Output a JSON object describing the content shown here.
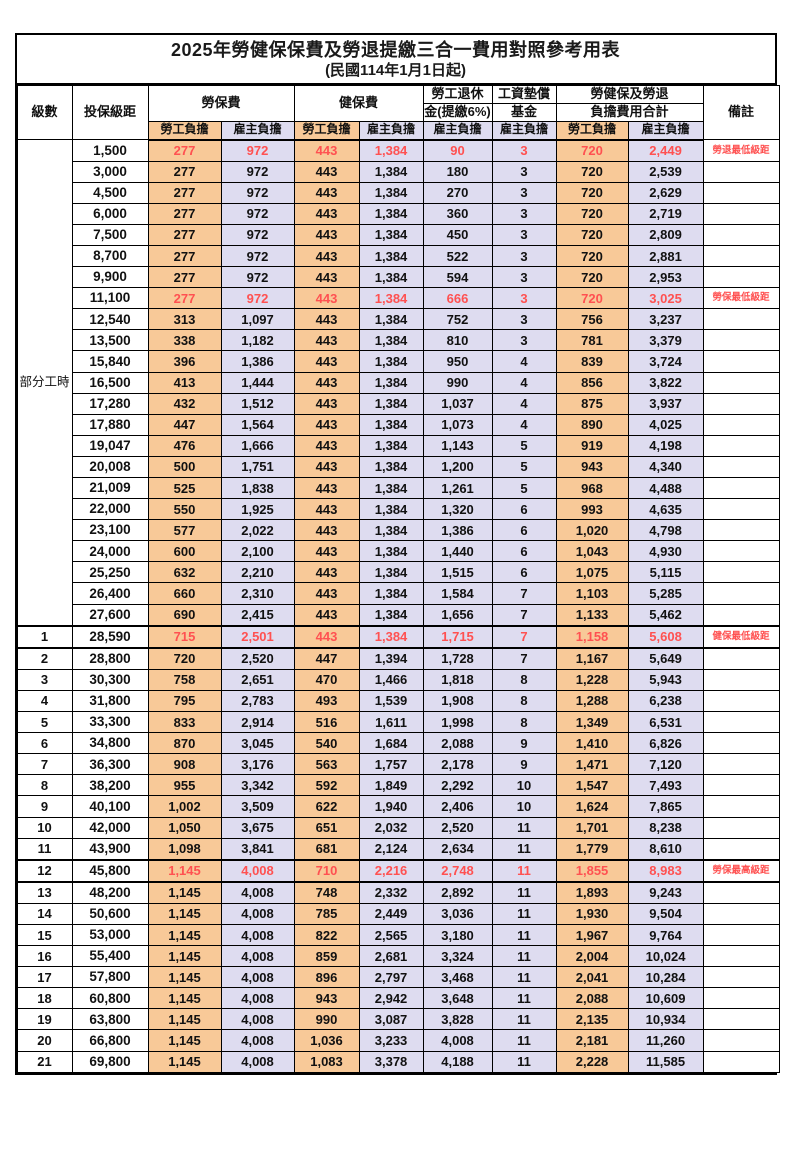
{
  "title": "2025年勞健保保費及勞退提繳三合一費用對照參考用表",
  "subtitle": "(民國114年1月1日起)",
  "colors": {
    "employee_cell_bg": "#F8C998",
    "employer_cell_bg": "#DEDCF0",
    "highlight_red": "#FF5151",
    "grid_line": "#000000"
  },
  "header": {
    "level": "級數",
    "salary_bracket": "投保級距",
    "labor_insurance": "勞保費",
    "health_insurance": "健保費",
    "pension_line1": "勞工退休",
    "pension_line2": "金(提繳6%)",
    "wage_fund_line1": "工資墊償",
    "wage_fund_line2": "基金",
    "total_line1": "勞健保及勞退",
    "total_line2": "負擔費用合計",
    "note": "備註",
    "employee_burden": "勞工負擔",
    "employer_burden": "雇主負擔"
  },
  "part_time_label": "部分工時",
  "part_time_rowspan": 23,
  "rows": [
    {
      "level": null,
      "salary": "1,500",
      "values": [
        "277",
        "972",
        "443",
        "1,384",
        "90",
        "3",
        "720",
        "2,449"
      ],
      "note": "勞退最低級距",
      "red": true,
      "thick": false
    },
    {
      "level": null,
      "salary": "3,000",
      "values": [
        "277",
        "972",
        "443",
        "1,384",
        "180",
        "3",
        "720",
        "2,539"
      ],
      "note": "",
      "red": false,
      "thick": false
    },
    {
      "level": null,
      "salary": "4,500",
      "values": [
        "277",
        "972",
        "443",
        "1,384",
        "270",
        "3",
        "720",
        "2,629"
      ],
      "note": "",
      "red": false,
      "thick": false
    },
    {
      "level": null,
      "salary": "6,000",
      "values": [
        "277",
        "972",
        "443",
        "1,384",
        "360",
        "3",
        "720",
        "2,719"
      ],
      "note": "",
      "red": false,
      "thick": false
    },
    {
      "level": null,
      "salary": "7,500",
      "values": [
        "277",
        "972",
        "443",
        "1,384",
        "450",
        "3",
        "720",
        "2,809"
      ],
      "note": "",
      "red": false,
      "thick": false
    },
    {
      "level": null,
      "salary": "8,700",
      "values": [
        "277",
        "972",
        "443",
        "1,384",
        "522",
        "3",
        "720",
        "2,881"
      ],
      "note": "",
      "red": false,
      "thick": false
    },
    {
      "level": null,
      "salary": "9,900",
      "values": [
        "277",
        "972",
        "443",
        "1,384",
        "594",
        "3",
        "720",
        "2,953"
      ],
      "note": "",
      "red": false,
      "thick": false
    },
    {
      "level": null,
      "salary": "11,100",
      "values": [
        "277",
        "972",
        "443",
        "1,384",
        "666",
        "3",
        "720",
        "3,025"
      ],
      "note": "勞保最低級距",
      "red": true,
      "thick": false
    },
    {
      "level": null,
      "salary": "12,540",
      "values": [
        "313",
        "1,097",
        "443",
        "1,384",
        "752",
        "3",
        "756",
        "3,237"
      ],
      "note": "",
      "red": false,
      "thick": false
    },
    {
      "level": null,
      "salary": "13,500",
      "values": [
        "338",
        "1,182",
        "443",
        "1,384",
        "810",
        "3",
        "781",
        "3,379"
      ],
      "note": "",
      "red": false,
      "thick": false
    },
    {
      "level": null,
      "salary": "15,840",
      "values": [
        "396",
        "1,386",
        "443",
        "1,384",
        "950",
        "4",
        "839",
        "3,724"
      ],
      "note": "",
      "red": false,
      "thick": false
    },
    {
      "level": null,
      "salary": "16,500",
      "values": [
        "413",
        "1,444",
        "443",
        "1,384",
        "990",
        "4",
        "856",
        "3,822"
      ],
      "note": "",
      "red": false,
      "thick": false
    },
    {
      "level": null,
      "salary": "17,280",
      "values": [
        "432",
        "1,512",
        "443",
        "1,384",
        "1,037",
        "4",
        "875",
        "3,937"
      ],
      "note": "",
      "red": false,
      "thick": false
    },
    {
      "level": null,
      "salary": "17,880",
      "values": [
        "447",
        "1,564",
        "443",
        "1,384",
        "1,073",
        "4",
        "890",
        "4,025"
      ],
      "note": "",
      "red": false,
      "thick": false
    },
    {
      "level": null,
      "salary": "19,047",
      "values": [
        "476",
        "1,666",
        "443",
        "1,384",
        "1,143",
        "5",
        "919",
        "4,198"
      ],
      "note": "",
      "red": false,
      "thick": false
    },
    {
      "level": null,
      "salary": "20,008",
      "values": [
        "500",
        "1,751",
        "443",
        "1,384",
        "1,200",
        "5",
        "943",
        "4,340"
      ],
      "note": "",
      "red": false,
      "thick": false
    },
    {
      "level": null,
      "salary": "21,009",
      "values": [
        "525",
        "1,838",
        "443",
        "1,384",
        "1,261",
        "5",
        "968",
        "4,488"
      ],
      "note": "",
      "red": false,
      "thick": false
    },
    {
      "level": null,
      "salary": "22,000",
      "values": [
        "550",
        "1,925",
        "443",
        "1,384",
        "1,320",
        "6",
        "993",
        "4,635"
      ],
      "note": "",
      "red": false,
      "thick": false
    },
    {
      "level": null,
      "salary": "23,100",
      "values": [
        "577",
        "2,022",
        "443",
        "1,384",
        "1,386",
        "6",
        "1,020",
        "4,798"
      ],
      "note": "",
      "red": false,
      "thick": false
    },
    {
      "level": null,
      "salary": "24,000",
      "values": [
        "600",
        "2,100",
        "443",
        "1,384",
        "1,440",
        "6",
        "1,043",
        "4,930"
      ],
      "note": "",
      "red": false,
      "thick": false
    },
    {
      "level": null,
      "salary": "25,250",
      "values": [
        "632",
        "2,210",
        "443",
        "1,384",
        "1,515",
        "6",
        "1,075",
        "5,115"
      ],
      "note": "",
      "red": false,
      "thick": false
    },
    {
      "level": null,
      "salary": "26,400",
      "values": [
        "660",
        "2,310",
        "443",
        "1,384",
        "1,584",
        "7",
        "1,103",
        "5,285"
      ],
      "note": "",
      "red": false,
      "thick": false
    },
    {
      "level": null,
      "salary": "27,600",
      "values": [
        "690",
        "2,415",
        "443",
        "1,384",
        "1,656",
        "7",
        "1,133",
        "5,462"
      ],
      "note": "",
      "red": false,
      "thick": false
    },
    {
      "level": "1",
      "salary": "28,590",
      "values": [
        "715",
        "2,501",
        "443",
        "1,384",
        "1,715",
        "7",
        "1,158",
        "5,608"
      ],
      "note": "健保最低級距",
      "red": true,
      "thick": true
    },
    {
      "level": "2",
      "salary": "28,800",
      "values": [
        "720",
        "2,520",
        "447",
        "1,394",
        "1,728",
        "7",
        "1,167",
        "5,649"
      ],
      "note": "",
      "red": false,
      "thick": false
    },
    {
      "level": "3",
      "salary": "30,300",
      "values": [
        "758",
        "2,651",
        "470",
        "1,466",
        "1,818",
        "8",
        "1,228",
        "5,943"
      ],
      "note": "",
      "red": false,
      "thick": false
    },
    {
      "level": "4",
      "salary": "31,800",
      "values": [
        "795",
        "2,783",
        "493",
        "1,539",
        "1,908",
        "8",
        "1,288",
        "6,238"
      ],
      "note": "",
      "red": false,
      "thick": false
    },
    {
      "level": "5",
      "salary": "33,300",
      "values": [
        "833",
        "2,914",
        "516",
        "1,611",
        "1,998",
        "8",
        "1,349",
        "6,531"
      ],
      "note": "",
      "red": false,
      "thick": false
    },
    {
      "level": "6",
      "salary": "34,800",
      "values": [
        "870",
        "3,045",
        "540",
        "1,684",
        "2,088",
        "9",
        "1,410",
        "6,826"
      ],
      "note": "",
      "red": false,
      "thick": false
    },
    {
      "level": "7",
      "salary": "36,300",
      "values": [
        "908",
        "3,176",
        "563",
        "1,757",
        "2,178",
        "9",
        "1,471",
        "7,120"
      ],
      "note": "",
      "red": false,
      "thick": false
    },
    {
      "level": "8",
      "salary": "38,200",
      "values": [
        "955",
        "3,342",
        "592",
        "1,849",
        "2,292",
        "10",
        "1,547",
        "7,493"
      ],
      "note": "",
      "red": false,
      "thick": false
    },
    {
      "level": "9",
      "salary": "40,100",
      "values": [
        "1,002",
        "3,509",
        "622",
        "1,940",
        "2,406",
        "10",
        "1,624",
        "7,865"
      ],
      "note": "",
      "red": false,
      "thick": false
    },
    {
      "level": "10",
      "salary": "42,000",
      "values": [
        "1,050",
        "3,675",
        "651",
        "2,032",
        "2,520",
        "11",
        "1,701",
        "8,238"
      ],
      "note": "",
      "red": false,
      "thick": false
    },
    {
      "level": "11",
      "salary": "43,900",
      "values": [
        "1,098",
        "3,841",
        "681",
        "2,124",
        "2,634",
        "11",
        "1,779",
        "8,610"
      ],
      "note": "",
      "red": false,
      "thick": false
    },
    {
      "level": "12",
      "salary": "45,800",
      "values": [
        "1,145",
        "4,008",
        "710",
        "2,216",
        "2,748",
        "11",
        "1,855",
        "8,983"
      ],
      "note": "勞保最高級距",
      "red": true,
      "thick": true
    },
    {
      "level": "13",
      "salary": "48,200",
      "values": [
        "1,145",
        "4,008",
        "748",
        "2,332",
        "2,892",
        "11",
        "1,893",
        "9,243"
      ],
      "note": "",
      "red": false,
      "thick": false
    },
    {
      "level": "14",
      "salary": "50,600",
      "values": [
        "1,145",
        "4,008",
        "785",
        "2,449",
        "3,036",
        "11",
        "1,930",
        "9,504"
      ],
      "note": "",
      "red": false,
      "thick": false
    },
    {
      "level": "15",
      "salary": "53,000",
      "values": [
        "1,145",
        "4,008",
        "822",
        "2,565",
        "3,180",
        "11",
        "1,967",
        "9,764"
      ],
      "note": "",
      "red": false,
      "thick": false
    },
    {
      "level": "16",
      "salary": "55,400",
      "values": [
        "1,145",
        "4,008",
        "859",
        "2,681",
        "3,324",
        "11",
        "2,004",
        "10,024"
      ],
      "note": "",
      "red": false,
      "thick": false
    },
    {
      "level": "17",
      "salary": "57,800",
      "values": [
        "1,145",
        "4,008",
        "896",
        "2,797",
        "3,468",
        "11",
        "2,041",
        "10,284"
      ],
      "note": "",
      "red": false,
      "thick": false
    },
    {
      "level": "18",
      "salary": "60,800",
      "values": [
        "1,145",
        "4,008",
        "943",
        "2,942",
        "3,648",
        "11",
        "2,088",
        "10,609"
      ],
      "note": "",
      "red": false,
      "thick": false
    },
    {
      "level": "19",
      "salary": "63,800",
      "values": [
        "1,145",
        "4,008",
        "990",
        "3,087",
        "3,828",
        "11",
        "2,135",
        "10,934"
      ],
      "note": "",
      "red": false,
      "thick": false
    },
    {
      "level": "20",
      "salary": "66,800",
      "values": [
        "1,145",
        "4,008",
        "1,036",
        "3,233",
        "4,008",
        "11",
        "2,181",
        "11,260"
      ],
      "note": "",
      "red": false,
      "thick": false
    },
    {
      "level": "21",
      "salary": "69,800",
      "values": [
        "1,145",
        "4,008",
        "1,083",
        "3,378",
        "4,188",
        "11",
        "2,228",
        "11,585"
      ],
      "note": "",
      "red": false,
      "thick": false
    }
  ]
}
